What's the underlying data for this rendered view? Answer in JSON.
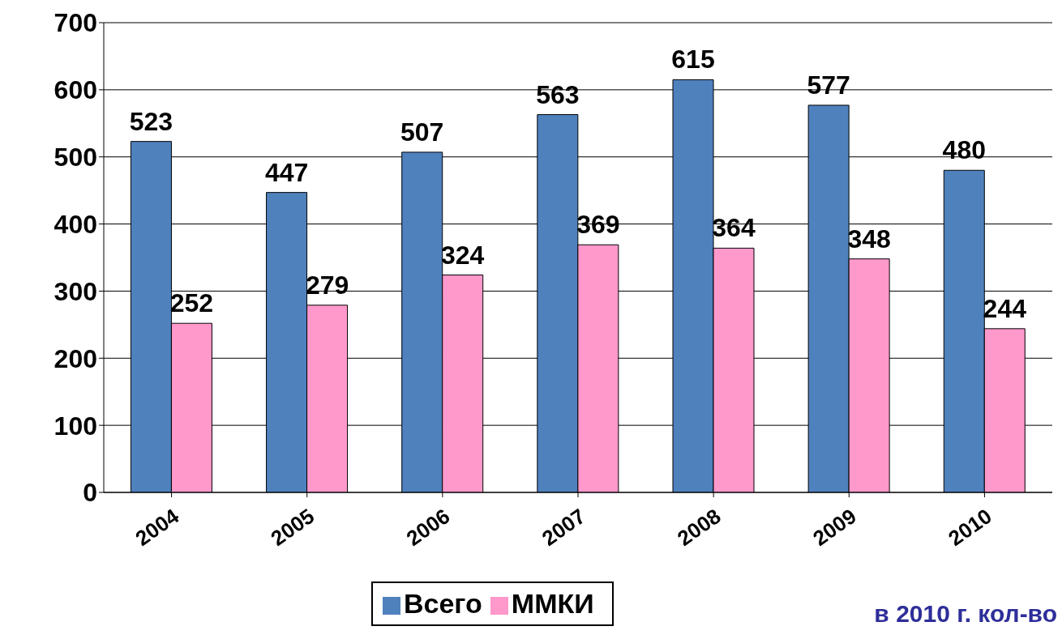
{
  "chart_data": {
    "type": "bar",
    "categories": [
      "2004",
      "2005",
      "2006",
      "2007",
      "2008",
      "2009",
      "2010"
    ],
    "series": [
      {
        "name": "Всего",
        "color": "#4f81bd",
        "values": [
          523,
          447,
          507,
          563,
          615,
          577,
          480
        ]
      },
      {
        "name": "ММКИ",
        "color": "#ff99cc",
        "values": [
          252,
          279,
          324,
          369,
          364,
          348,
          244
        ]
      }
    ],
    "ylim": [
      0,
      700
    ],
    "yticks": [
      0,
      100,
      200,
      300,
      400,
      500,
      600,
      700
    ],
    "grid": "y",
    "legend": "bottom",
    "data_labels": true,
    "annotations": [
      "в 2010 г. кол-во"
    ]
  }
}
